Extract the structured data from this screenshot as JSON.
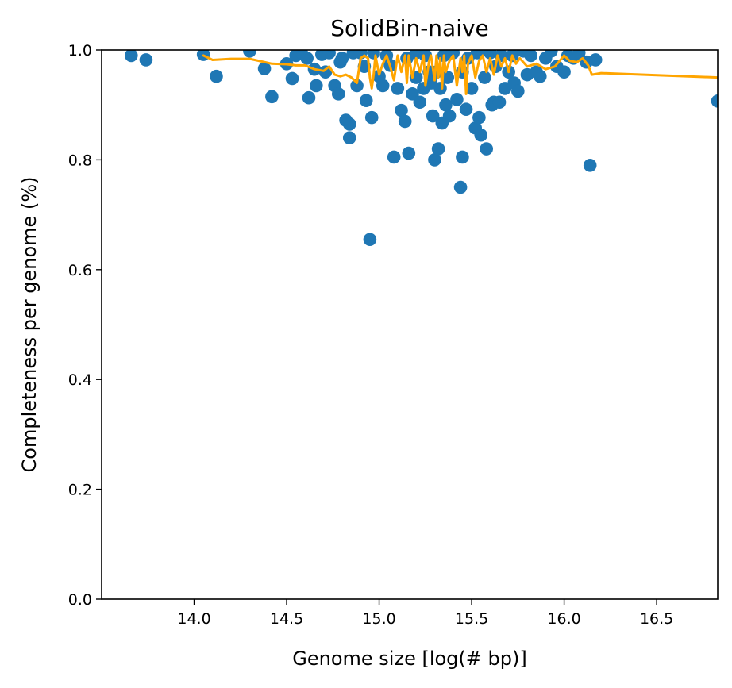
{
  "chart_data": {
    "type": "scatter",
    "title": "SolidBin-naive",
    "xlabel": "Genome size [log(# bp)]",
    "ylabel": "Completeness per genome (%)",
    "xlim": [
      13.5,
      16.83
    ],
    "ylim": [
      0.0,
      1.0
    ],
    "grid": false,
    "legend": "none",
    "x_ticks": [
      14.0,
      14.5,
      15.0,
      15.5,
      16.0,
      16.5
    ],
    "x_tick_labels": [
      "14.0",
      "14.5",
      "15.0",
      "15.5",
      "16.0",
      "16.5"
    ],
    "y_ticks": [
      0.0,
      0.2,
      0.4,
      0.6,
      0.8,
      1.0
    ],
    "y_tick_labels": [
      "0.0",
      "0.2",
      "0.4",
      "0.6",
      "0.8",
      "1.0"
    ],
    "colors": {
      "points": "#1f77b4",
      "trend": "#ffa500"
    },
    "series": [
      {
        "kind": "points",
        "x": [
          13.66,
          13.74,
          14.05,
          14.12,
          14.3,
          14.38,
          14.42,
          14.5,
          14.53,
          14.55,
          14.58,
          14.61,
          14.62,
          14.65,
          14.66,
          14.69,
          14.71,
          14.73,
          14.76,
          14.78,
          14.79,
          14.8,
          14.82,
          14.84,
          14.84,
          14.86,
          14.88,
          14.9,
          14.92,
          14.93,
          14.95,
          14.96,
          14.97,
          15.0,
          15.02,
          15.04,
          15.06,
          15.08,
          15.1,
          15.12,
          15.14,
          15.15,
          15.16,
          15.18,
          15.2,
          15.2,
          15.22,
          15.24,
          15.25,
          15.27,
          15.28,
          15.29,
          15.3,
          15.31,
          15.32,
          15.33,
          15.34,
          15.35,
          15.36,
          15.37,
          15.38,
          15.4,
          15.42,
          15.44,
          15.45,
          15.45,
          15.47,
          15.48,
          15.5,
          15.52,
          15.53,
          15.54,
          15.55,
          15.57,
          15.58,
          15.6,
          15.61,
          15.62,
          15.63,
          15.65,
          15.66,
          15.68,
          15.7,
          15.72,
          15.73,
          15.75,
          15.78,
          15.8,
          15.82,
          15.85,
          15.87,
          15.9,
          15.93,
          15.96,
          16.0,
          16.02,
          16.05,
          16.08,
          16.12,
          16.14,
          16.17,
          16.83
        ],
        "y": [
          0.99,
          0.982,
          0.992,
          0.952,
          0.998,
          0.966,
          0.915,
          0.975,
          0.948,
          0.99,
          0.995,
          0.985,
          0.913,
          0.965,
          0.935,
          0.992,
          0.96,
          0.995,
          0.935,
          0.92,
          0.978,
          0.985,
          0.872,
          0.865,
          0.84,
          0.995,
          0.935,
          0.995,
          0.97,
          0.908,
          0.655,
          0.877,
          0.995,
          0.952,
          0.935,
          0.99,
          0.972,
          0.805,
          0.93,
          0.89,
          0.87,
          0.985,
          0.812,
          0.92,
          0.995,
          0.95,
          0.905,
          0.93,
          0.99,
          0.96,
          0.94,
          0.88,
          0.8,
          0.96,
          0.82,
          0.93,
          0.867,
          0.99,
          0.9,
          0.95,
          0.88,
          0.995,
          0.91,
          0.75,
          0.805,
          0.96,
          0.892,
          0.985,
          0.93,
          0.858,
          0.995,
          0.877,
          0.845,
          0.95,
          0.82,
          0.995,
          0.9,
          0.905,
          0.97,
          0.905,
          0.99,
          0.93,
          0.96,
          0.99,
          0.94,
          0.925,
          0.998,
          0.955,
          0.99,
          0.96,
          0.952,
          0.985,
          0.998,
          0.97,
          0.96,
          0.99,
          0.985,
          0.995,
          0.978,
          0.79,
          0.982,
          0.907
        ]
      },
      {
        "kind": "line",
        "x": [
          14.05,
          14.1,
          14.2,
          14.3,
          14.38,
          14.42,
          14.5,
          14.55,
          14.6,
          14.65,
          14.7,
          14.73,
          14.76,
          14.79,
          14.82,
          14.85,
          14.88,
          14.9,
          14.92,
          14.94,
          14.95,
          14.96,
          14.97,
          14.98,
          15.0,
          15.02,
          15.04,
          15.06,
          15.08,
          15.1,
          15.12,
          15.14,
          15.15,
          15.16,
          15.18,
          15.2,
          15.22,
          15.24,
          15.25,
          15.27,
          15.28,
          15.3,
          15.31,
          15.32,
          15.33,
          15.34,
          15.35,
          15.36,
          15.38,
          15.4,
          15.42,
          15.44,
          15.45,
          15.46,
          15.47,
          15.48,
          15.5,
          15.52,
          15.54,
          15.56,
          15.58,
          15.6,
          15.62,
          15.64,
          15.66,
          15.68,
          15.7,
          15.72,
          15.74,
          15.76,
          15.8,
          15.85,
          15.9,
          15.95,
          16.0,
          16.03,
          16.07,
          16.1,
          16.13,
          16.15,
          16.2,
          16.83
        ],
        "y": [
          0.99,
          0.982,
          0.984,
          0.984,
          0.978,
          0.975,
          0.974,
          0.972,
          0.972,
          0.965,
          0.962,
          0.97,
          0.955,
          0.952,
          0.955,
          0.95,
          0.94,
          0.985,
          0.99,
          0.985,
          0.95,
          0.93,
          0.955,
          0.99,
          0.955,
          0.975,
          0.99,
          0.97,
          0.945,
          0.99,
          0.96,
          0.99,
          0.94,
          0.99,
          0.95,
          0.985,
          0.96,
          0.99,
          0.935,
          0.98,
          0.99,
          0.945,
          0.99,
          0.95,
          0.985,
          0.93,
          0.99,
          0.96,
          0.98,
          0.99,
          0.935,
          0.985,
          0.96,
          0.99,
          0.92,
          0.975,
          0.99,
          0.95,
          0.98,
          0.99,
          0.96,
          0.985,
          0.955,
          0.99,
          0.97,
          0.985,
          0.96,
          0.99,
          0.975,
          0.985,
          0.97,
          0.975,
          0.965,
          0.97,
          0.99,
          0.98,
          0.978,
          0.985,
          0.972,
          0.955,
          0.958,
          0.95
        ]
      }
    ]
  }
}
